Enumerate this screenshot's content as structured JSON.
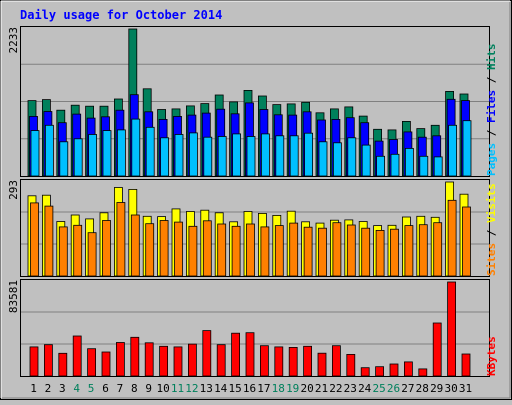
{
  "chart_data": [
    {
      "type": "bar",
      "title": "Daily usage for October 2014",
      "panel": "top",
      "y_max_label": "2233",
      "ylim": [
        0,
        2233
      ],
      "categories": [
        "1",
        "2",
        "3",
        "4",
        "5",
        "6",
        "7",
        "8",
        "9",
        "10",
        "11",
        "12",
        "13",
        "14",
        "15",
        "16",
        "17",
        "18",
        "19",
        "20",
        "21",
        "22",
        "23",
        "24",
        "25",
        "26",
        "27",
        "28",
        "29",
        "30",
        "31"
      ],
      "weekend_days": [
        "4",
        "5",
        "11",
        "12",
        "18",
        "19",
        "25",
        "26"
      ],
      "series": [
        {
          "name": "Hits",
          "color": "#00805c",
          "values": [
            1145,
            1160,
            1000,
            1075,
            1060,
            1060,
            1170,
            2233,
            1325,
            1010,
            1020,
            1065,
            1100,
            1230,
            1125,
            1300,
            1215,
            1085,
            1095,
            1120,
            960,
            1020,
            1050,
            910,
            710,
            700,
            830,
            720,
            770,
            1285,
            1245
          ]
        },
        {
          "name": "Files",
          "color": "#0000ff",
          "values": [
            905,
            980,
            810,
            940,
            880,
            900,
            1000,
            1235,
            975,
            860,
            905,
            925,
            955,
            1015,
            945,
            1110,
            1010,
            930,
            925,
            975,
            850,
            860,
            885,
            810,
            530,
            555,
            670,
            590,
            610,
            1165,
            1145
          ]
        },
        {
          "name": "Pages",
          "color": "#00c0ff",
          "values": [
            690,
            770,
            520,
            565,
            630,
            690,
            700,
            865,
            740,
            580,
            630,
            655,
            590,
            600,
            640,
            600,
            640,
            610,
            610,
            650,
            520,
            505,
            580,
            470,
            300,
            330,
            420,
            300,
            290,
            770,
            840
          ]
        }
      ]
    },
    {
      "type": "bar",
      "panel": "middle",
      "y_max_label": "293",
      "ylim": [
        0,
        293
      ],
      "categories": [
        "1",
        "2",
        "3",
        "4",
        "5",
        "6",
        "7",
        "8",
        "9",
        "10",
        "11",
        "12",
        "13",
        "14",
        "15",
        "16",
        "17",
        "18",
        "19",
        "20",
        "21",
        "22",
        "23",
        "24",
        "25",
        "26",
        "27",
        "28",
        "29",
        "30",
        "31"
      ],
      "series": [
        {
          "name": "Visits",
          "color": "#ffff00",
          "values": [
            250,
            252,
            170,
            190,
            178,
            197,
            276,
            270,
            186,
            185,
            209,
            201,
            205,
            197,
            169,
            201,
            195,
            189,
            202,
            169,
            165,
            174,
            175,
            170,
            157,
            158,
            184,
            186,
            183,
            293,
            255
          ]
        },
        {
          "name": "Sites",
          "color": "#ff8000",
          "values": [
            228,
            218,
            153,
            158,
            135,
            173,
            229,
            190,
            163,
            173,
            168,
            155,
            172,
            162,
            155,
            162,
            153,
            157,
            165,
            152,
            149,
            166,
            159,
            149,
            142,
            146,
            157,
            160,
            166,
            236,
            215
          ]
        }
      ]
    },
    {
      "type": "bar",
      "panel": "bottom",
      "y_max_label": "83581",
      "ylim": [
        0,
        83581
      ],
      "categories": [
        "1",
        "2",
        "3",
        "4",
        "5",
        "6",
        "7",
        "8",
        "9",
        "10",
        "11",
        "12",
        "13",
        "14",
        "15",
        "16",
        "17",
        "18",
        "19",
        "20",
        "21",
        "22",
        "23",
        "24",
        "25",
        "26",
        "27",
        "28",
        "29",
        "30",
        "31"
      ],
      "series": [
        {
          "name": "KBytes",
          "color": "#ff0000",
          "values": [
            25900,
            27800,
            20200,
            35600,
            24300,
            21300,
            29800,
            34400,
            29500,
            26400,
            25900,
            28400,
            40400,
            27800,
            38100,
            38500,
            26900,
            25900,
            25400,
            26400,
            20300,
            26900,
            19200,
            7400,
            8300,
            10700,
            12500,
            6300,
            47100,
            83581,
            19600
          ]
        }
      ]
    }
  ],
  "legend": {
    "top": {
      "pages": "Pages",
      "files": "Files",
      "hits": "Hits",
      "sep": "/"
    },
    "middle": {
      "sites": "Sites",
      "visits": "Visits",
      "sep": "/"
    },
    "bottom": {
      "kbytes": "KBytes"
    }
  },
  "colors": {
    "background": "#c0c0c0",
    "title": "#0000ff",
    "weekend": "#00805c",
    "weekday": "#000000"
  }
}
